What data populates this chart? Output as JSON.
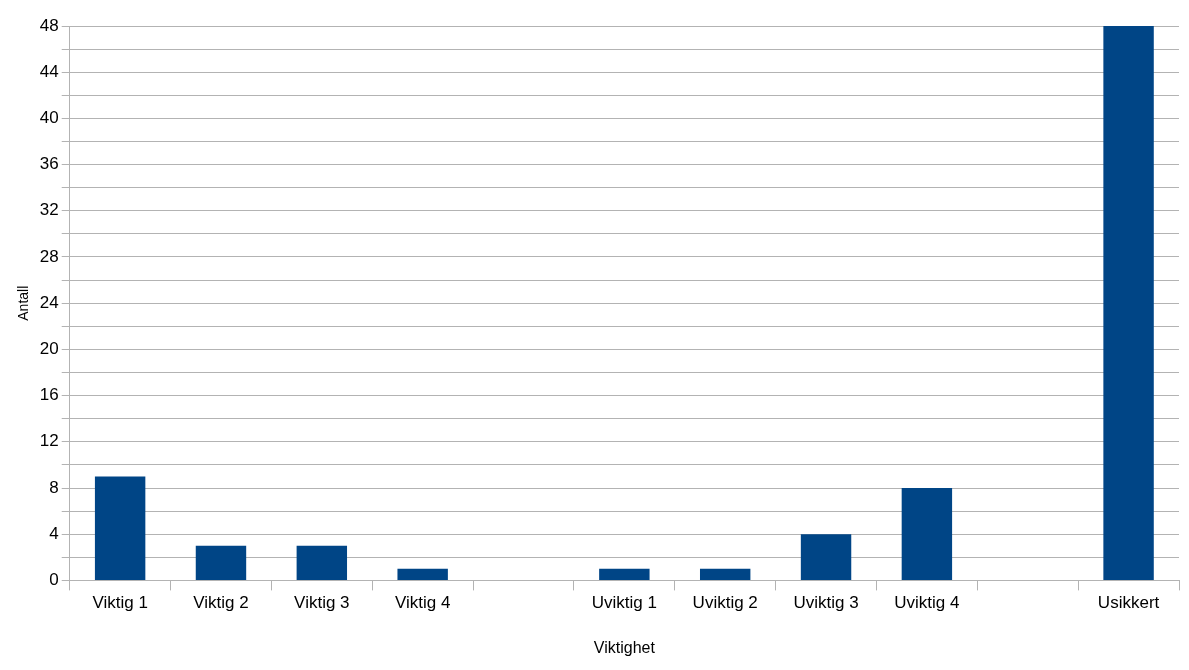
{
  "chart_data": {
    "type": "bar",
    "xlabel": "Viktighet",
    "ylabel": "Antall",
    "categories": [
      "Viktig 1",
      "Viktig 2",
      "Viktig 3",
      "Viktig 4",
      null,
      "Uviktig 1",
      "Uviktig 2",
      "Uviktig 3",
      "Uviktig 4",
      null,
      "Usikkert"
    ],
    "values": [
      9,
      3,
      3,
      1,
      null,
      1,
      1,
      4,
      8,
      null,
      48
    ],
    "color": "#004586",
    "ylim": [
      0,
      48
    ],
    "yticks": [
      0,
      {
        "value": 2,
        "label": null
      },
      4,
      {
        "value": 6,
        "label": null
      },
      8,
      {
        "value": 10,
        "label": null
      },
      12,
      {
        "value": 14,
        "label": null
      },
      16,
      {
        "value": 18,
        "label": null
      },
      20,
      {
        "value": 22,
        "label": null
      },
      24,
      {
        "value": 26,
        "label": null
      },
      28,
      {
        "value": 30,
        "label": null
      },
      32,
      {
        "value": 34,
        "label": null
      },
      36,
      {
        "value": 38,
        "label": null
      },
      40,
      {
        "value": 42,
        "label": null
      },
      44,
      {
        "value": 46,
        "label": null
      },
      48
    ],
    "grid": "y",
    "legend": false
  }
}
